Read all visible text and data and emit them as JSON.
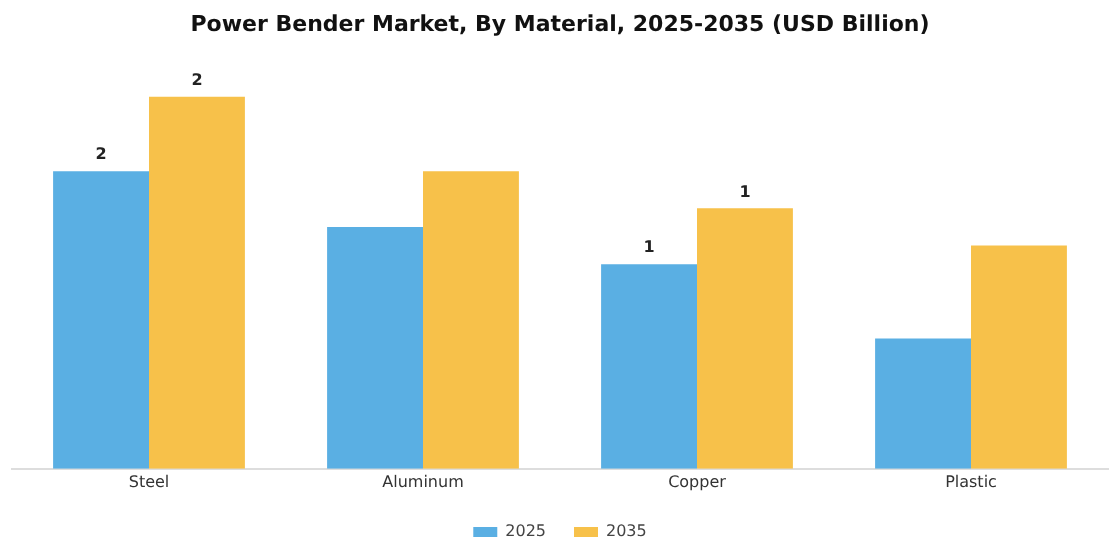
{
  "chart_data": {
    "type": "bar",
    "title": "Power Bender Market, By Material, 2025-2035 (USD Billion)",
    "categories": [
      "Steel",
      "Aluminum",
      "Copper",
      "Plastic"
    ],
    "series": [
      {
        "name": "2025",
        "color": "#5aafe3",
        "values": [
          1.6,
          1.3,
          1.1,
          0.7
        ],
        "value_labels": [
          "2",
          null,
          "1",
          null
        ]
      },
      {
        "name": "2035",
        "color": "#f7c14a",
        "values": [
          2.0,
          1.6,
          1.4,
          1.2
        ],
        "value_labels": [
          "2",
          null,
          "1",
          null
        ]
      }
    ],
    "legend": "bottom",
    "grid": false
  }
}
